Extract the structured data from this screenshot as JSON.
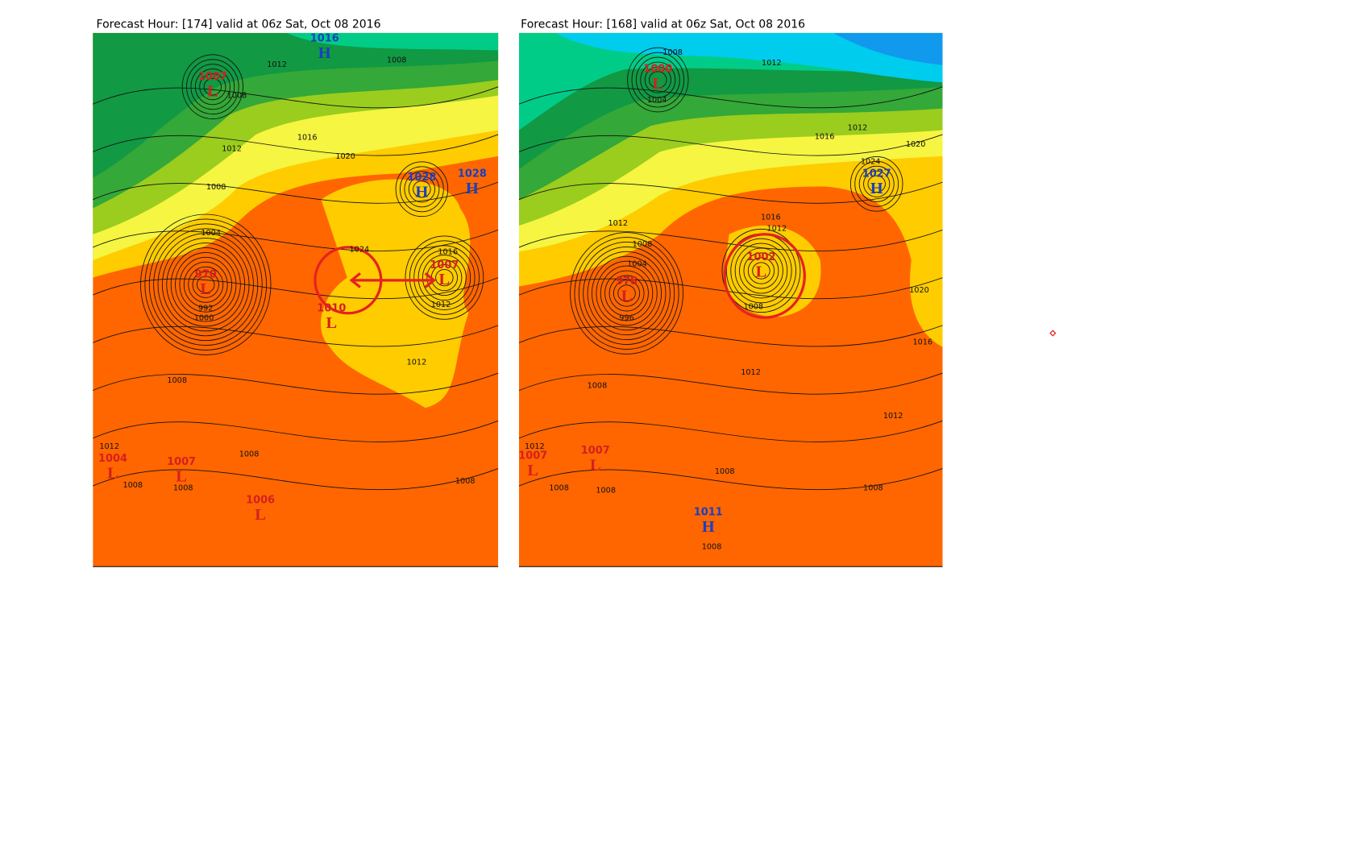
{
  "panels": [
    {
      "title": "Forecast Hour: [174]   valid at 06z Sat, Oct 08 2016",
      "centers": [
        {
          "value": 1016,
          "kind": "H"
        },
        {
          "value": 1007,
          "kind": "L"
        },
        {
          "value": 1028,
          "kind": "H"
        },
        {
          "value": 1028,
          "kind": "H"
        },
        {
          "value": 970,
          "kind": "L"
        },
        {
          "value": 1007,
          "kind": "L"
        },
        {
          "value": 1010,
          "kind": "L"
        },
        {
          "value": 1004,
          "kind": "L"
        },
        {
          "value": 1007,
          "kind": "L"
        },
        {
          "value": 1006,
          "kind": "L"
        }
      ],
      "isobar_labels": [
        1012,
        1008,
        1008,
        1016,
        1012,
        1020,
        1008,
        1004,
        1024,
        1016,
        1012,
        992,
        1000,
        1012,
        1008,
        1008,
        1008,
        1012,
        1008,
        1008
      ]
    },
    {
      "title": "Forecast Hour: [168]   valid at 06z Sat, Oct 08 2016",
      "centers": [
        {
          "value": 1000,
          "kind": "L"
        },
        {
          "value": 1027,
          "kind": "H"
        },
        {
          "value": 1002,
          "kind": "L"
        },
        {
          "value": 978,
          "kind": "L"
        },
        {
          "value": 1007,
          "kind": "L"
        },
        {
          "value": 1007,
          "kind": "L"
        },
        {
          "value": 1011,
          "kind": "H"
        }
      ],
      "isobar_labels": [
        1008,
        1012,
        1004,
        1012,
        1016,
        1020,
        1024,
        1016,
        1012,
        1012,
        1008,
        1004,
        1008,
        1020,
        996,
        1016,
        1012,
        1008,
        1012,
        1008,
        1008,
        1008,
        1008,
        1008,
        1012
      ]
    }
  ]
}
